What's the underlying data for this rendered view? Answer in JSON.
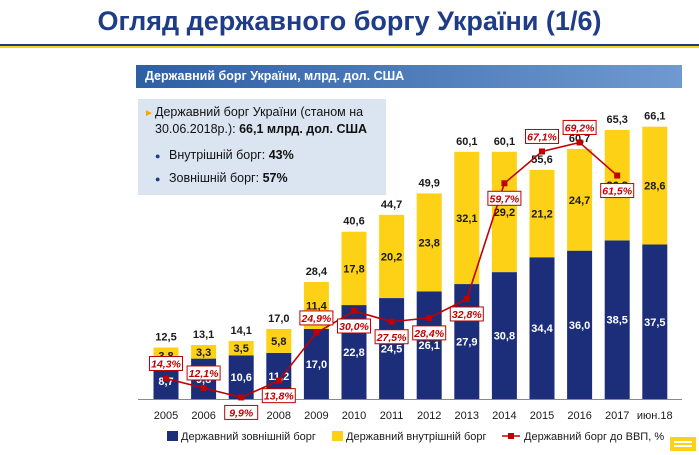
{
  "page": {
    "title": "Огляд державного боргу України (1/6)"
  },
  "info_box": {
    "line1": "Державний борг України (станом на",
    "line2_prefix": "30.06.2018р.): ",
    "line2_bold": "66,1 млрд. дол. США",
    "internal_label": "Внутрішній борг: ",
    "internal_value": "43%",
    "external_label": "Зовнішній борг: ",
    "external_value": "57%"
  },
  "colors": {
    "external": "#1c2e7a",
    "internal": "#fcd116",
    "ratio": "#c00000"
  },
  "chart_data": {
    "type": "bar",
    "stacked": true,
    "title": "Державний борг України, млрд. дол. США",
    "categories": [
      "2005",
      "2006",
      "2007",
      "2008",
      "2009",
      "2010",
      "2011",
      "2012",
      "2013",
      "2014",
      "2015",
      "2016",
      "2017",
      "июн.18"
    ],
    "series": [
      {
        "name": "Державний зовнішній борг",
        "values": [
          "8,7",
          "9,8",
          "10,6",
          "11,2",
          "17,0",
          "22,8",
          "24,5",
          "26,1",
          "27,9",
          "30,8",
          "34,4",
          "36,0",
          "38,5",
          "37,5"
        ]
      },
      {
        "name": "Державний внутрішній борг",
        "values": [
          "3,8",
          "3,3",
          "3,5",
          "5,8",
          "11,4",
          "17,8",
          "20,2",
          "23,8",
          "32,1",
          "29,2",
          "21,2",
          "24,7",
          "26,8",
          "28,6"
        ]
      }
    ],
    "totals": [
      "12,5",
      "13,1",
      "14,1",
      "17,0",
      "28,4",
      "40,6",
      "44,7",
      "49,9",
      "60,1",
      "60,1",
      "55,6",
      "60,7",
      "65,3",
      "66,1"
    ],
    "line_series": {
      "name": "Державний борг до ВВП, %",
      "values": [
        "14,3%",
        "12,1%",
        "9,9%",
        "13,8%",
        "24,9%",
        "30,0%",
        "27,5%",
        "28,4%",
        "32,8%",
        "59,7%",
        "67,1%",
        "69,2%",
        "61,5%"
      ]
    },
    "legend_position": "bottom",
    "grid": false
  }
}
